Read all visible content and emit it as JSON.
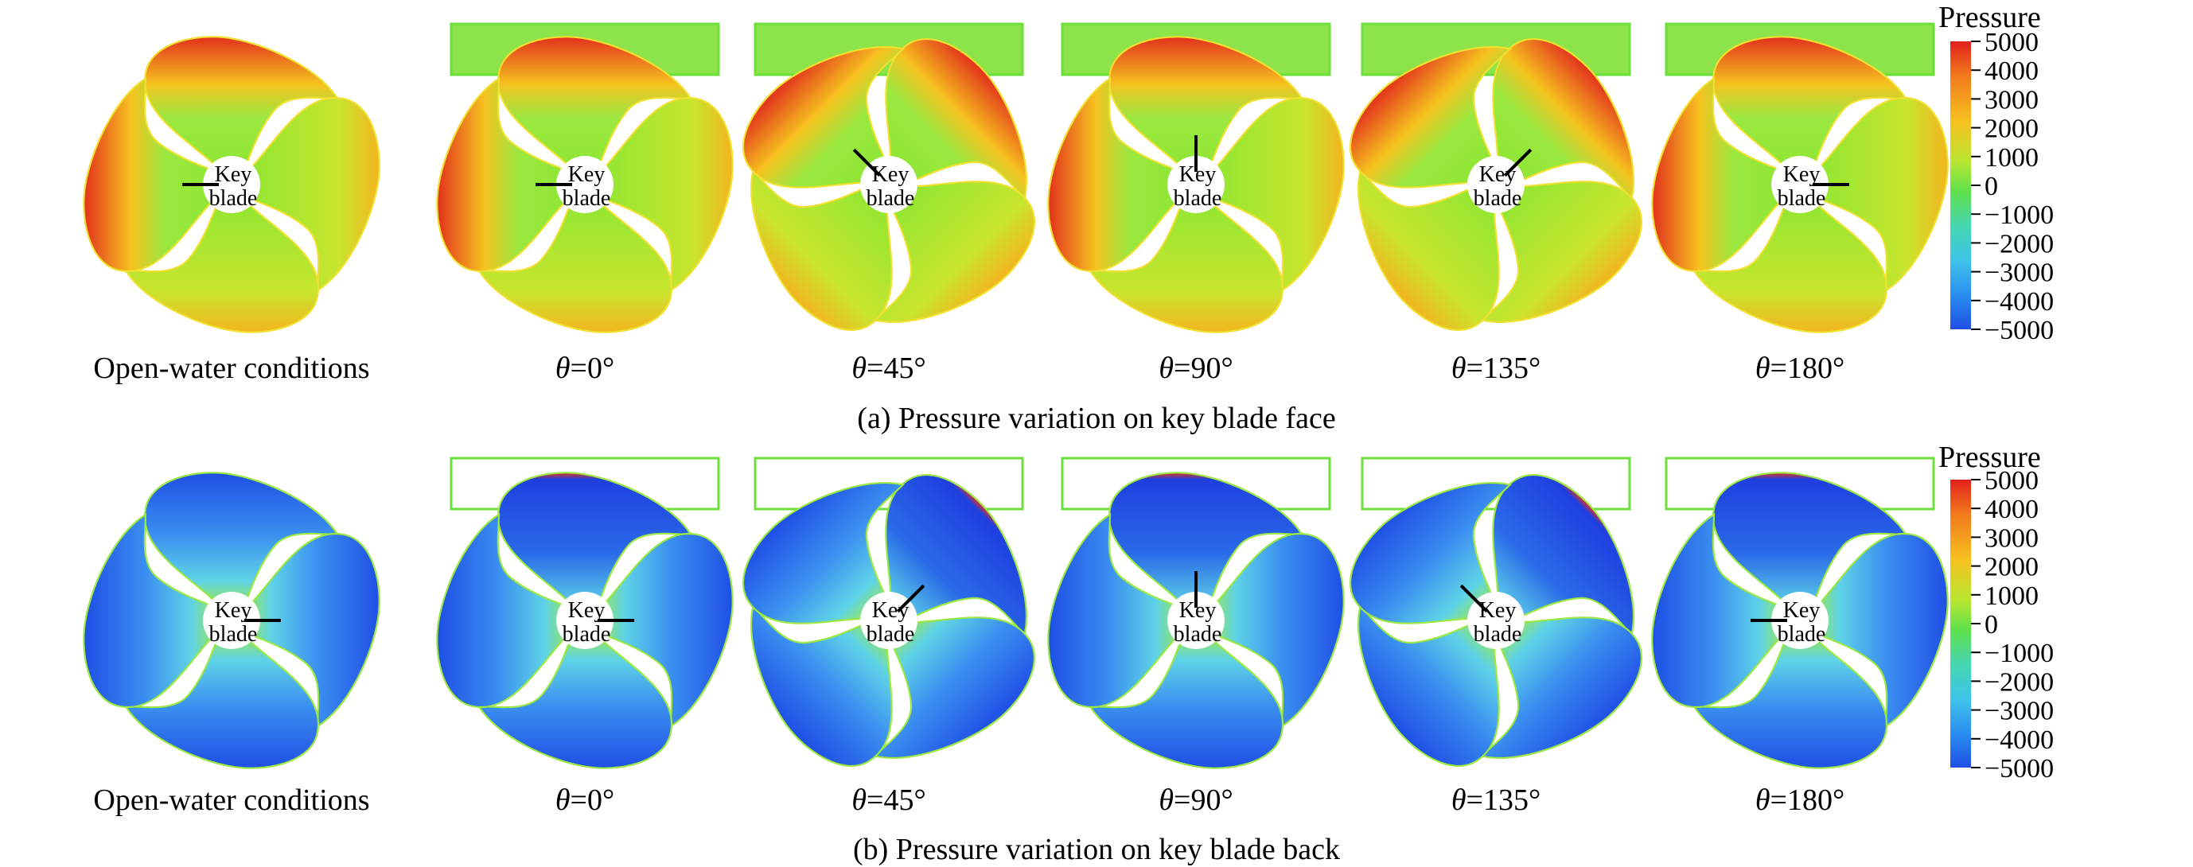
{
  "panels": [
    {
      "id": "face",
      "caption": "(a) Pressure variation on key blade face",
      "colorbar_title": "Pressure",
      "colorbar_ticks": [
        "5000",
        "4000",
        "3000",
        "2000",
        "1000",
        "0",
        "−1000",
        "−2000",
        "−3000",
        "−4000",
        "−5000"
      ],
      "propellers": [
        {
          "label": "Open-water conditions",
          "theta": "",
          "angle_deg": 0,
          "marker_deg": 180,
          "window": false
        },
        {
          "label": "",
          "theta": "θ",
          "theta_value": "=0°",
          "angle_deg": 0,
          "marker_deg": 180,
          "window": true
        },
        {
          "label": "",
          "theta": "θ",
          "theta_value": "=45°",
          "angle_deg": 45,
          "marker_deg": 225,
          "window": true
        },
        {
          "label": "",
          "theta": "θ",
          "theta_value": "=90°",
          "angle_deg": 0,
          "marker_deg": 270,
          "window": true
        },
        {
          "label": "",
          "theta": "θ",
          "theta_value": "=135°",
          "angle_deg": 45,
          "marker_deg": 315,
          "window": true
        },
        {
          "label": "",
          "theta": "θ",
          "theta_value": "=180°",
          "angle_deg": 0,
          "marker_deg": 0,
          "window": true
        }
      ]
    },
    {
      "id": "back",
      "caption": "(b) Pressure variation on key blade back",
      "colorbar_title": "Pressure",
      "colorbar_ticks": [
        "5000",
        "4000",
        "3000",
        "2000",
        "1000",
        "0",
        "−1000",
        "−2000",
        "−3000",
        "−4000",
        "−5000"
      ],
      "propellers": [
        {
          "label": "Open-water conditions",
          "theta": "",
          "angle_deg": 0,
          "marker_deg": 0,
          "window": false
        },
        {
          "label": "",
          "theta": "θ",
          "theta_value": "=0°",
          "angle_deg": 0,
          "marker_deg": 0,
          "window": true
        },
        {
          "label": "",
          "theta": "θ",
          "theta_value": "=45°",
          "angle_deg": 45,
          "marker_deg": 315,
          "window": true
        },
        {
          "label": "",
          "theta": "θ",
          "theta_value": "=90°",
          "angle_deg": 0,
          "marker_deg": 270,
          "window": true
        },
        {
          "label": "",
          "theta": "θ",
          "theta_value": "=135°",
          "angle_deg": 45,
          "marker_deg": 225,
          "window": true
        },
        {
          "label": "",
          "theta": "θ",
          "theta_value": "=180°",
          "angle_deg": 0,
          "marker_deg": 180,
          "window": true
        }
      ]
    }
  ],
  "hub_label": [
    "Key",
    "blade"
  ],
  "colors": {
    "face_blade": "#8ee632",
    "face_high": "#e8321e",
    "face_mid": "#f6c21f",
    "back_blade": "#1f5be0",
    "back_mid": "#5fd3e8",
    "back_edge": "#9be840",
    "window_fill": "#8de34a",
    "window_stroke": "#6ddf3a",
    "marker": "#000000"
  },
  "colormap": [
    "#e2211c",
    "#f04e1c",
    "#f88a1d",
    "#f6c21f",
    "#d9e52a",
    "#9be840",
    "#5fe04a",
    "#46d6b0",
    "#3fc4e9",
    "#2a8ef0",
    "#1f4fe5"
  ]
}
